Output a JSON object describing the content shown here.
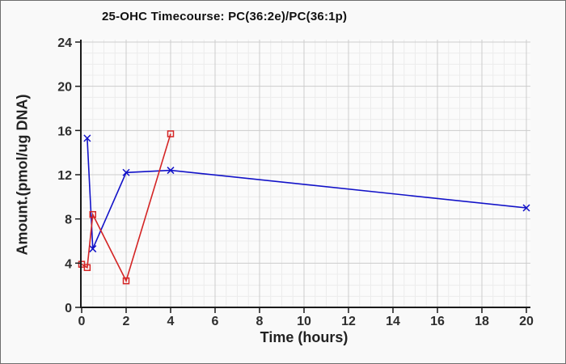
{
  "figure": {
    "title": "25-OHC Timecourse: PC(36:2e)/PC(36:1p)"
  },
  "chart_data": {
    "type": "line",
    "title": "25-OHC Timecourse: PC(36:2e)/PC(36:1p)",
    "xlabel": "Time (hours)",
    "ylabel": "Amount.(pmol/ug DNA)",
    "xlim": [
      0,
      20
    ],
    "ylim": [
      0,
      24
    ],
    "x_ticks": [
      0,
      2,
      4,
      6,
      8,
      10,
      12,
      14,
      16,
      18,
      20
    ],
    "y_ticks": [
      0,
      4,
      8,
      12,
      16,
      20,
      24
    ],
    "x_minor_step": 0.5,
    "y_minor_step": 1,
    "grid": true,
    "legend_position": "none",
    "series": [
      {
        "name": "blue-x-series",
        "marker": "x",
        "line_style": "solid",
        "color": "#1212c8",
        "x": [
          0.25,
          0.5,
          2,
          4,
          20
        ],
        "y": [
          15.3,
          5.3,
          12.2,
          12.4,
          9.0
        ]
      },
      {
        "name": "red-square-series",
        "marker": "open-square",
        "line_style": "solid",
        "color": "#d42424",
        "x": [
          0,
          0.25,
          0.5,
          2,
          4
        ],
        "y": [
          3.9,
          3.6,
          8.4,
          2.4,
          15.7
        ]
      }
    ]
  },
  "style": {
    "page_background": "#f9f9f9",
    "plot_background": "#fbfbfb",
    "border_color": "#6e6e6e",
    "axis_color": "#1a1a1a",
    "major_grid_color": "#cccccc",
    "minor_grid_color": "#ececec",
    "tick_label_color": "#2e2e2e"
  }
}
